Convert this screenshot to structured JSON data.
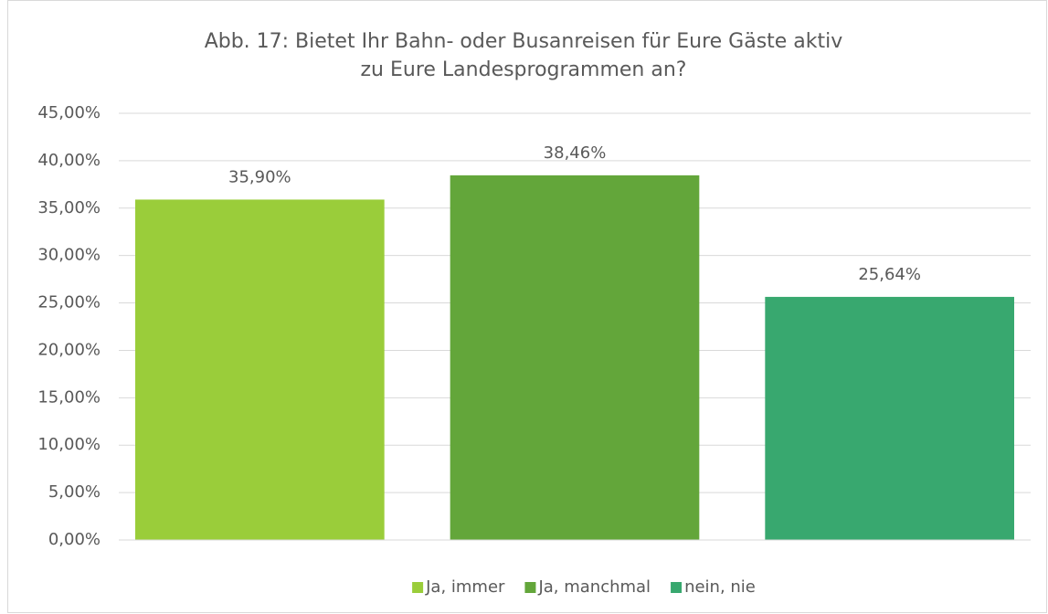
{
  "chart_data": {
    "type": "bar",
    "title": "Abb. 17: Bietet Ihr Bahn- oder Busanreisen für Eure Gäste aktiv zu Eure Landesprogrammen an?",
    "categories": [
      null
    ],
    "series": [
      {
        "name": "Ja, immer",
        "color": "#9acd3a",
        "values": [
          35.9
        ],
        "value_labels": [
          "35,90%"
        ]
      },
      {
        "name": "Ja, manchmal",
        "color": "#63a63a",
        "values": [
          38.46
        ],
        "value_labels": [
          "38,46%"
        ]
      },
      {
        "name": "nein, nie",
        "color": "#38a86f",
        "values": [
          25.64
        ],
        "value_labels": [
          "25,64%"
        ]
      }
    ],
    "ylim": [
      0,
      45
    ],
    "yticks": [
      {
        "value": 0,
        "label": "0,00%"
      },
      {
        "value": 5,
        "label": "5,00%"
      },
      {
        "value": 10,
        "label": "10,00%"
      },
      {
        "value": 15,
        "label": "15,00%"
      },
      {
        "value": 20,
        "label": "20,00%"
      },
      {
        "value": 25,
        "label": "25,00%"
      },
      {
        "value": 30,
        "label": "30,00%"
      },
      {
        "value": 35,
        "label": "35,00%"
      },
      {
        "value": 40,
        "label": "40,00%"
      },
      {
        "value": 45,
        "label": "45,00%"
      }
    ],
    "grid": true,
    "legend": "bottom"
  }
}
